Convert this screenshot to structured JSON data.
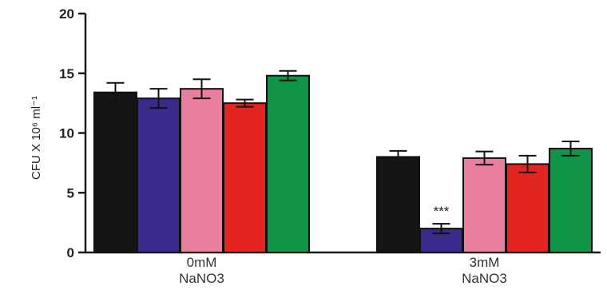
{
  "chart_data": {
    "type": "bar",
    "ylabel": "CFU X 10⁶ ml⁻¹",
    "ylim": [
      0,
      20
    ],
    "yticks": [
      0,
      5,
      10,
      15,
      20
    ],
    "grid": false,
    "legend": "none",
    "categories": [
      [
        "0mM",
        "NaNO3"
      ],
      [
        "3mM",
        "NaNO3"
      ]
    ],
    "series": [
      {
        "color": "#151515",
        "values": [
          13.4,
          8.0
        ],
        "errors": [
          0.8,
          0.5
        ]
      },
      {
        "color": "#3a2a8c",
        "values": [
          12.9,
          2.0
        ],
        "errors": [
          0.8,
          0.4
        ]
      },
      {
        "color": "#e87f9f",
        "values": [
          13.7,
          7.9
        ],
        "errors": [
          0.8,
          0.55
        ]
      },
      {
        "color": "#e2251f",
        "values": [
          12.5,
          7.4
        ],
        "errors": [
          0.3,
          0.7
        ]
      },
      {
        "color": "#109447",
        "values": [
          14.8,
          8.7
        ],
        "errors": [
          0.4,
          0.6
        ]
      }
    ],
    "annotations": [
      {
        "category_index": 1,
        "series_index": 1,
        "text": "***"
      }
    ]
  }
}
